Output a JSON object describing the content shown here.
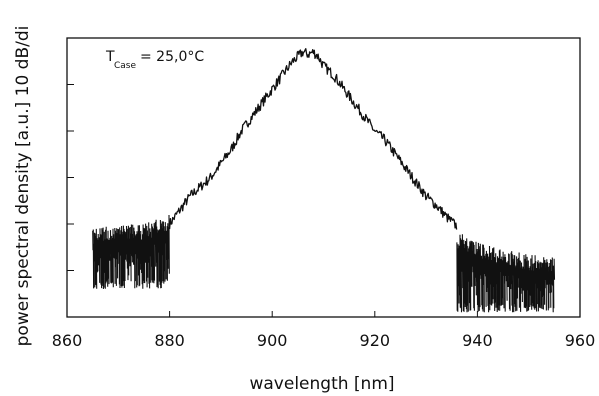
{
  "chart_data": {
    "type": "line",
    "title": "",
    "xlabel": "wavelength [nm]",
    "ylabel": "power spectral density [a.u.] 10 dB/di",
    "xlim": [
      860,
      960
    ],
    "ylim": [
      0,
      6
    ],
    "x_ticks": [
      "860",
      "880",
      "900",
      "920",
      "940",
      "960"
    ],
    "y_tick_count": 6,
    "grid": false,
    "legend": "none",
    "annotation": {
      "main": "T",
      "subscript": "Case",
      "value": "= 25,0°C"
    },
    "line_color": "#111111",
    "series": [
      {
        "x": [
          865,
          870,
          875,
          880,
          882,
          884,
          886,
          888,
          890,
          892,
          894,
          896,
          898,
          900,
          902,
          904,
          906,
          907,
          908,
          909,
          910,
          912,
          914,
          916,
          918,
          920,
          922,
          924,
          926,
          928,
          930,
          932,
          934,
          936,
          938,
          940,
          945,
          950,
          955
        ],
        "values": [
          1.7,
          1.8,
          1.8,
          2.0,
          2.3,
          2.6,
          2.8,
          3.0,
          3.3,
          3.6,
          4.0,
          4.3,
          4.6,
          4.9,
          5.2,
          5.5,
          5.7,
          5.65,
          5.7,
          5.6,
          5.4,
          5.2,
          4.9,
          4.6,
          4.3,
          4.0,
          3.8,
          3.5,
          3.2,
          2.9,
          2.6,
          2.4,
          2.15,
          1.95,
          1.75,
          1.6,
          1.45,
          1.35,
          1.3
        ],
        "noise_floor_left": {
          "x_range": [
            865,
            880
          ],
          "low": 0.6,
          "high": 2.3
        },
        "noise_floor_right": {
          "x_range": [
            936,
            955
          ],
          "low": 0.1,
          "high": 1.8
        }
      }
    ]
  }
}
